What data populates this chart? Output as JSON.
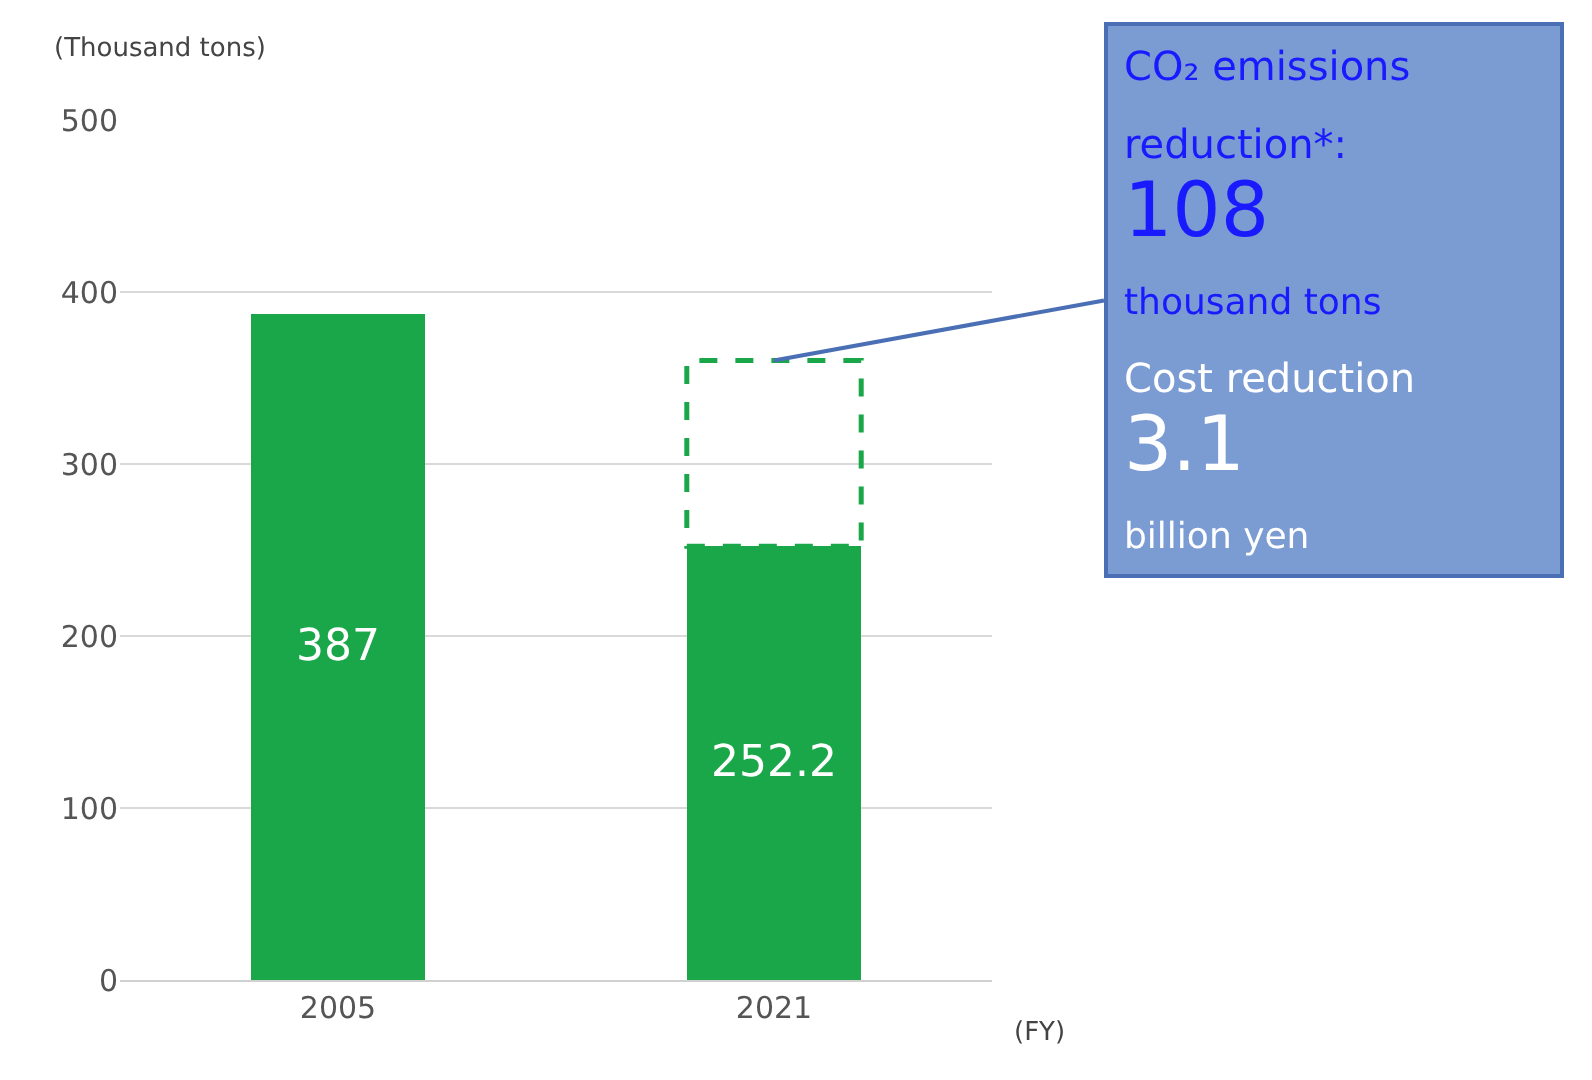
{
  "chart_data": {
    "type": "bar",
    "stacked": true,
    "ylabel": "(Thousand tons)",
    "xlabel": "(FY)",
    "categories": [
      "2005",
      "2021"
    ],
    "series": [
      {
        "color": "#1aa74a",
        "values": [
          387,
          252.2
        ],
        "value_labels": [
          "387",
          "252.2"
        ]
      },
      {
        "color": "#1aa74a",
        "values": [
          null,
          108
        ],
        "line_style": "dashed"
      }
    ],
    "ylim": [
      0,
      500
    ],
    "yticks": [
      0,
      100,
      200,
      300,
      400,
      500
    ],
    "grid": "y",
    "annotations": [
      {
        "text": "CO₂ emissions\nreduction*:\n108\nthousand tons\nCost reduction\n3.1\nbillion yen",
        "x": "2021",
        "y": 360.2
      }
    ]
  }
}
